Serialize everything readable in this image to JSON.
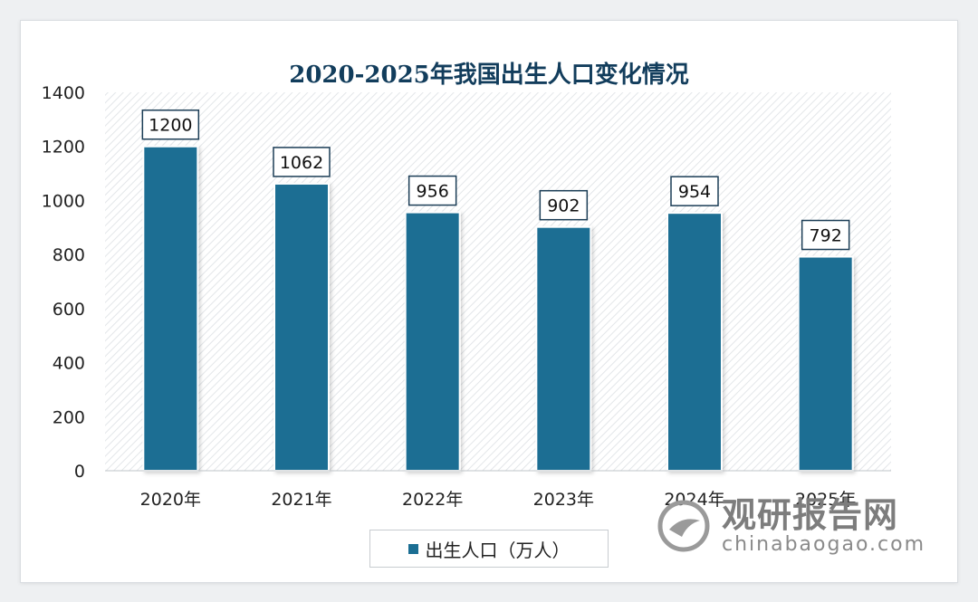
{
  "chart_data": {
    "type": "bar",
    "title": "2020-2025年我国出生人口变化情况",
    "categories": [
      "2020年",
      "2021年",
      "2022年",
      "2023年",
      "2024年",
      "2025年"
    ],
    "series": [
      {
        "name": "出生人口（万人）",
        "values": [
          1200,
          1062,
          956,
          902,
          954,
          792
        ]
      }
    ],
    "ylim": [
      0,
      1400
    ],
    "yticks": [
      0,
      200,
      400,
      600,
      800,
      1000,
      1200,
      1400
    ],
    "grid": false,
    "legend": "bottom",
    "bar_color": "#1b6e93",
    "title_color": "#123d5c"
  },
  "watermark": {
    "name_cn": "观研报告网",
    "url": "chinabaogao.com"
  }
}
